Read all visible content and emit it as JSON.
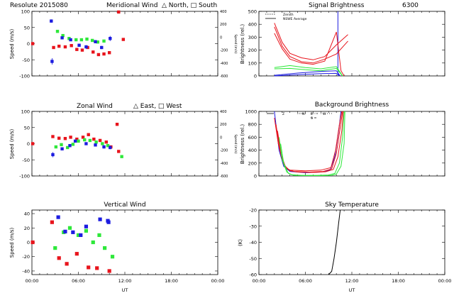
{
  "colors": {
    "red": "#e8141c",
    "green": "#2ee83a",
    "blue": "#1c1ce0",
    "black": "#000000"
  },
  "x_axis": {
    "ticks": [
      "00:00",
      "06:00",
      "12:00",
      "18:00",
      "00:00"
    ],
    "label": "UT",
    "max_hours": 24
  },
  "chart_data": [
    {
      "id": "meridional",
      "type": "scatter",
      "title_parts": [
        "Resolute  2015080",
        "Meridional Wind",
        "△ North, □ South"
      ],
      "ylabel": "Speed (m/s)",
      "ylim": [
        -100,
        100
      ],
      "yticks": [
        "-100",
        "-50",
        "0",
        "50",
        "100"
      ],
      "right_ylabel": "Speed (m/s)",
      "right_yticks": [
        "400",
        "200",
        "0",
        "-200",
        "-400",
        "-600"
      ],
      "series": [
        {
          "name": "red",
          "color": "red",
          "x": [
            0.1,
            2.8,
            3.5,
            4.3,
            5.1,
            5.8,
            6.5,
            7.2,
            7.9,
            8.6,
            9.3,
            10.0,
            11.2,
            11.8
          ],
          "y": [
            0,
            -12,
            -8,
            -10,
            -6,
            -18,
            -20,
            -12,
            -26,
            -34,
            -32,
            -28,
            98,
            13
          ]
        },
        {
          "name": "green",
          "color": "green",
          "x": [
            3.3,
            4.0,
            4.8,
            5.7,
            6.4,
            7.1,
            7.8,
            8.5,
            9.3
          ],
          "y": [
            38,
            25,
            16,
            12,
            12,
            14,
            10,
            5,
            8
          ]
        },
        {
          "name": "blue",
          "color": "blue",
          "x": [
            2.5,
            2.6,
            3.9,
            5.0,
            6.1,
            7.0,
            8.2,
            9.0,
            10.1
          ],
          "y": [
            70,
            -55,
            18,
            12,
            -5,
            -10,
            6,
            -12,
            16
          ],
          "err": [
            5,
            10,
            4,
            4,
            4,
            5,
            5,
            5,
            8
          ]
        }
      ]
    },
    {
      "id": "zonal",
      "type": "scatter",
      "title_parts": [
        "Zonal Wind",
        "△ East, □ West"
      ],
      "ylabel": "Speed (m/s)",
      "ylim": [
        -100,
        100
      ],
      "yticks": [
        "-100",
        "-50",
        "0",
        "50",
        "100"
      ],
      "right_ylabel": "Speed (m/s)",
      "right_yticks": [
        "400",
        "200",
        "0",
        "-200",
        "-400",
        "-600"
      ],
      "series": [
        {
          "name": "red",
          "color": "red",
          "x": [
            0.1,
            2.7,
            3.5,
            4.3,
            5.0,
            5.8,
            6.6,
            7.3,
            8.0,
            8.8,
            9.6,
            10.2,
            11.0,
            11.2
          ],
          "y": [
            0,
            22,
            17,
            16,
            20,
            14,
            20,
            28,
            14,
            10,
            5,
            -10,
            60,
            -24
          ]
        },
        {
          "name": "green",
          "color": "green",
          "x": [
            3.1,
            3.8,
            4.6,
            5.3,
            6.0,
            6.8,
            7.5,
            8.3,
            9.1,
            9.8,
            11.6
          ],
          "y": [
            -10,
            -3,
            -12,
            -2,
            8,
            12,
            10,
            5,
            0,
            -6,
            -40
          ]
        },
        {
          "name": "blue",
          "color": "blue",
          "x": [
            2.7,
            3.9,
            4.9,
            5.6,
            7.0,
            8.2,
            9.3,
            10.1
          ],
          "y": [
            -34,
            -16,
            -6,
            8,
            0,
            -4,
            -10,
            -12
          ],
          "err": [
            8,
            4,
            4,
            4,
            4,
            4,
            5,
            5
          ]
        }
      ]
    },
    {
      "id": "vertical",
      "type": "scatter",
      "title_parts": [
        "Vertical Wind"
      ],
      "ylabel": "Speed (m/s)",
      "ylim": [
        -45,
        45
      ],
      "ytick_values": [
        -40,
        -20,
        0,
        20,
        40
      ],
      "yticks": [
        "-40",
        "-20",
        "0",
        "20",
        "40"
      ],
      "series": [
        {
          "name": "red",
          "color": "red",
          "x": [
            0.1,
            2.6,
            3.5,
            4.5,
            5.8,
            7.3,
            8.4,
            10.0
          ],
          "y": [
            0,
            28,
            -22,
            -30,
            -16,
            -35,
            -36,
            -40
          ]
        },
        {
          "name": "green",
          "color": "green",
          "x": [
            3.0,
            4.1,
            4.9,
            6.0,
            7.0,
            7.9,
            8.7,
            9.4,
            10.4
          ],
          "y": [
            -8,
            14,
            20,
            10,
            16,
            0,
            10,
            -8,
            -20
          ]
        },
        {
          "name": "blue",
          "color": "blue",
          "x": [
            3.4,
            4.3,
            5.3,
            6.3,
            7.0,
            8.8,
            9.8,
            9.9
          ],
          "y": [
            35,
            15,
            14,
            10,
            22,
            32,
            30,
            28
          ]
        }
      ]
    },
    {
      "id": "signal",
      "type": "line",
      "title_parts": [
        "Signal Brightness",
        "6300"
      ],
      "ylabel": "Brightness (rel.)",
      "ylim": [
        0,
        500
      ],
      "yticks": [
        "0",
        "100",
        "200",
        "300",
        "400",
        "500"
      ],
      "legend": [
        "Zenith",
        "NSWE Average"
      ],
      "vline_x": 10.2,
      "series": [
        {
          "name": "red-a",
          "color": "red",
          "x": [
            2.0,
            3.0,
            4.0,
            5.5,
            7.0,
            8.5,
            10.0,
            11.5
          ],
          "y": [
            410,
            260,
            175,
            140,
            125,
            150,
            240,
            320
          ]
        },
        {
          "name": "red-b",
          "color": "red",
          "x": [
            2.0,
            3.0,
            4.0,
            5.5,
            7.0,
            8.5,
            10.0,
            11.5
          ],
          "y": [
            380,
            230,
            150,
            110,
            100,
            130,
            170,
            270
          ]
        },
        {
          "name": "red-c",
          "color": "red",
          "x": [
            2.0,
            3.0,
            4.0,
            5.5,
            7.0,
            8.5,
            10.0,
            10.6,
            11.0
          ],
          "y": [
            330,
            210,
            130,
            100,
            90,
            115,
            340,
            40,
            0
          ]
        },
        {
          "name": "green-a",
          "color": "green",
          "x": [
            2.0,
            4.0,
            6.0,
            8.0,
            10.0,
            10.8
          ],
          "y": [
            65,
            80,
            65,
            55,
            72,
            0
          ]
        },
        {
          "name": "green-b",
          "color": "green",
          "x": [
            2.0,
            4.0,
            6.0,
            8.0,
            10.0,
            10.8
          ],
          "y": [
            55,
            58,
            48,
            40,
            58,
            0
          ]
        },
        {
          "name": "blue-a",
          "color": "blue",
          "x": [
            2.0,
            5.0,
            8.0,
            10.0,
            10.5
          ],
          "y": [
            5,
            22,
            35,
            40,
            0
          ]
        },
        {
          "name": "blue-b",
          "color": "blue",
          "x": [
            2.0,
            5.0,
            8.0,
            10.0,
            10.5
          ],
          "y": [
            0,
            10,
            18,
            20,
            0
          ]
        }
      ]
    },
    {
      "id": "background",
      "type": "line",
      "title_parts": [
        "Background Brightness"
      ],
      "ylabel": "Brightness (rel.)",
      "ylim": [
        0,
        1000
      ],
      "yticks": [
        "0",
        "200",
        "400",
        "600",
        "800",
        "1000"
      ],
      "legend": [
        "Z",
        "N",
        "E",
        "S",
        "W"
      ],
      "series": [
        {
          "name": "blue",
          "color": "blue",
          "x": [
            2.0,
            2.3,
            2.6,
            3.2,
            4.0,
            6.0,
            8.0,
            9.2,
            9.8,
            10.3,
            10.6
          ],
          "y": [
            1000,
            700,
            400,
            150,
            70,
            50,
            60,
            90,
            300,
            700,
            1000
          ]
        },
        {
          "name": "red-a",
          "color": "red",
          "x": [
            2.0,
            2.5,
            3.0,
            3.5,
            4.0,
            6.0,
            8.0,
            9.3,
            9.9,
            10.4,
            10.7
          ],
          "y": [
            900,
            500,
            250,
            130,
            90,
            80,
            90,
            130,
            400,
            800,
            1000
          ]
        },
        {
          "name": "red-b",
          "color": "red",
          "x": [
            2.2,
            2.7,
            3.2,
            3.8,
            4.5,
            6.5,
            8.3,
            9.4,
            10.0,
            10.5,
            10.8
          ],
          "y": [
            800,
            420,
            180,
            100,
            70,
            60,
            70,
            110,
            350,
            750,
            1000
          ]
        },
        {
          "name": "red-c",
          "color": "red",
          "x": [
            2.4,
            2.9,
            3.4,
            4.0,
            5.0,
            7.0,
            8.6,
            9.6,
            10.2,
            10.7,
            10.9
          ],
          "y": [
            700,
            320,
            150,
            80,
            60,
            55,
            65,
            100,
            300,
            700,
            1000
          ]
        },
        {
          "name": "green-a",
          "color": "green",
          "x": [
            2.6,
            3.0,
            3.6,
            4.2,
            5.5,
            7.5,
            9.0,
            9.8,
            10.4,
            10.8,
            11.0
          ],
          "y": [
            600,
            250,
            60,
            20,
            10,
            10,
            15,
            40,
            200,
            600,
            1000
          ]
        },
        {
          "name": "green-b",
          "color": "green",
          "x": [
            2.8,
            3.2,
            3.8,
            4.5,
            6.0,
            8.0,
            9.4,
            10.0,
            10.6,
            11.0,
            11.1
          ],
          "y": [
            500,
            200,
            40,
            10,
            5,
            5,
            10,
            30,
            150,
            500,
            1000
          ]
        }
      ]
    },
    {
      "id": "sky",
      "type": "line",
      "title_parts": [
        "Sky Temperature"
      ],
      "ylabel": "(K)",
      "ylim": [
        -60,
        -20
      ],
      "ytick_values": [
        -60,
        -50,
        -40,
        -30,
        -20
      ],
      "yticks": [
        "-60",
        "-50",
        "-40",
        "-30",
        "-20"
      ],
      "series": [
        {
          "name": "temp",
          "color": "black",
          "x": [
            9.0,
            9.4,
            9.7,
            10.0,
            10.3,
            10.5
          ],
          "y": [
            -60,
            -58,
            -50,
            -40,
            -28,
            -20
          ]
        }
      ]
    }
  ]
}
